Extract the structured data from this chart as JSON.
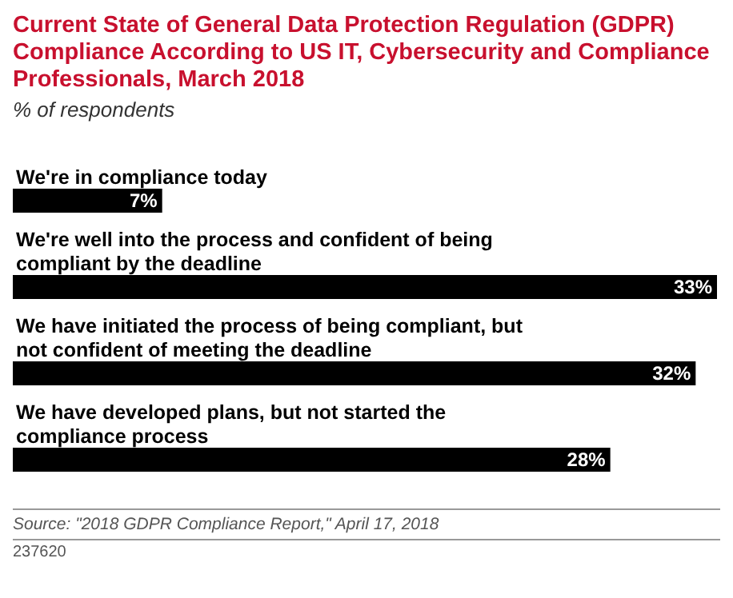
{
  "chart_data": {
    "type": "bar",
    "orientation": "horizontal",
    "title": "Current State of General Data Protection Regulation (GDPR) Compliance According to US IT, Cybersecurity and Compliance Professionals, March 2018",
    "subtitle": "% of respondents",
    "categories": [
      "We're in compliance today",
      "We're well into the process and confident of being compliant by the deadline",
      "We have initiated the process of being compliant, but not confident of meeting the deadline",
      "We have developed plans, but not started the compliance process"
    ],
    "values": [
      7,
      33,
      32,
      28
    ],
    "value_labels": [
      "7%",
      "33%",
      "32%",
      "28%"
    ],
    "color": "#000000",
    "annotations": [
      "Source: \"2018 GDPR Compliance Report,\" April 17, 2018",
      "237620"
    ]
  }
}
